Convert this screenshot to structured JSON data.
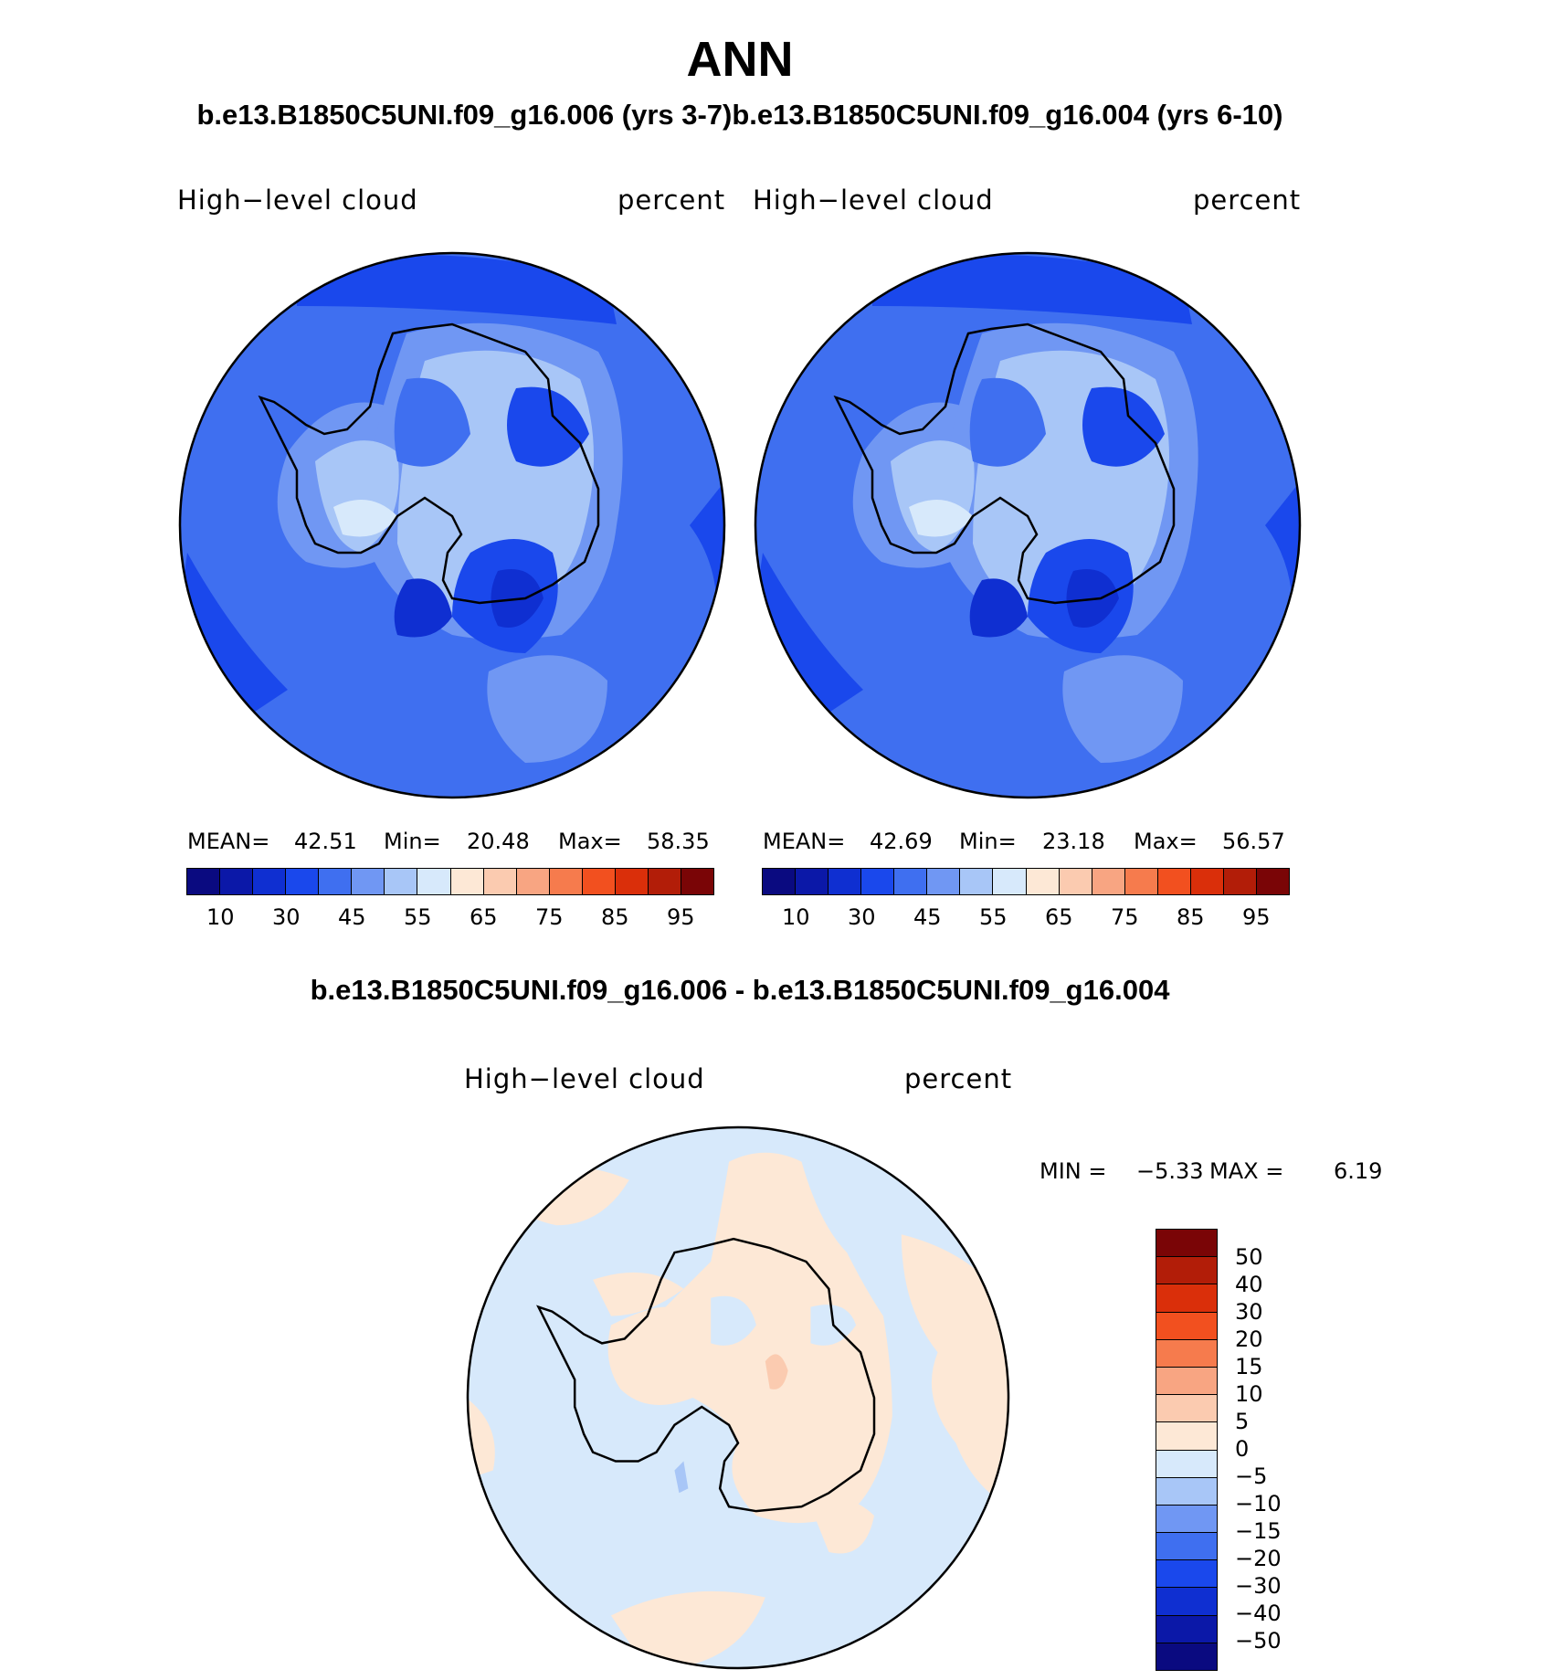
{
  "title": "ANN",
  "cases_line": "b.e13.B1850C5UNI.f09_g16.006 (yrs 3-7)b.e13.B1850C5UNI.f09_g16.004 (yrs 6-10)",
  "panel1": {
    "variable": "High−level cloud",
    "units": "percent",
    "mean_label": "MEAN=",
    "mean": "42.51",
    "min_label": "Min=",
    "min": "20.48",
    "max_label": "Max=",
    "max": "58.35"
  },
  "panel2": {
    "variable": "High−level cloud",
    "units": "percent",
    "mean_label": "MEAN=",
    "mean": "42.69",
    "min_label": "Min=",
    "min": "23.18",
    "max_label": "Max=",
    "max": "56.57"
  },
  "colorbar_abs": {
    "colors": [
      "#0a0a80",
      "#0b18a8",
      "#0f2fd1",
      "#1a48ec",
      "#3f6ff0",
      "#7097f3",
      "#a8c6f7",
      "#d7e9fb",
      "#fde8d6",
      "#fbcbb0",
      "#f8a582",
      "#f67b4d",
      "#f2501f",
      "#da2f0a",
      "#b21d08",
      "#7a0506"
    ],
    "ticks": [
      "10",
      "30",
      "45",
      "55",
      "65",
      "75",
      "85",
      "95"
    ]
  },
  "diff": {
    "title": "b.e13.B1850C5UNI.f09_g16.006 - b.e13.B1850C5UNI.f09_g16.004",
    "variable": "High−level cloud",
    "units": "percent",
    "min_label": "MIN =",
    "min": "−5.33",
    "max_label": "MAX =",
    "max": "6.19"
  },
  "colorbar_diff": {
    "colors": [
      "#7a0506",
      "#b21d08",
      "#da2f0a",
      "#f2501f",
      "#f67b4d",
      "#f8a582",
      "#fbcbb0",
      "#fde8d6",
      "#d7e9fb",
      "#a8c6f7",
      "#7097f3",
      "#3f6ff0",
      "#1a48ec",
      "#0f2fd1",
      "#0b18a8",
      "#0a0a80"
    ],
    "ticks": [
      "50",
      "40",
      "30",
      "20",
      "15",
      "10",
      "5",
      "0",
      "−5",
      "−10",
      "−15",
      "−20",
      "−30",
      "−40",
      "−50"
    ]
  }
}
